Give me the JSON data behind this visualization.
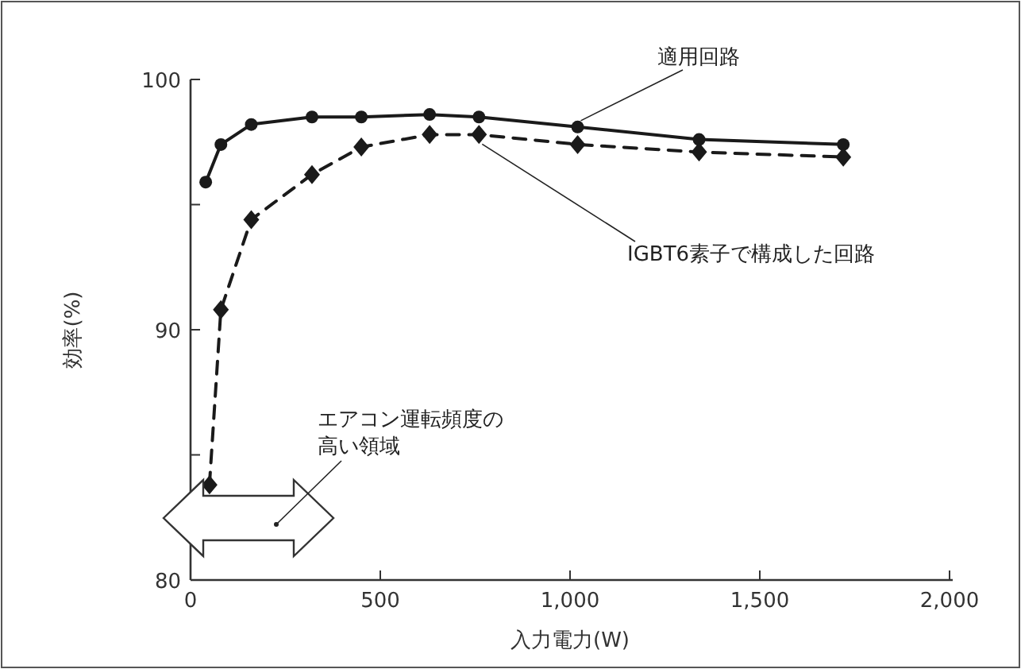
{
  "chart_data": {
    "type": "line",
    "xlabel": "入力電力(W)",
    "ylabel": "効率(%)",
    "xlim": [
      0,
      2000
    ],
    "ylim": [
      80,
      100
    ],
    "xticks": [
      0,
      500,
      {
        "value": 1000,
        "label": "1,000"
      },
      {
        "value": 1500,
        "label": "1,500"
      },
      {
        "value": 2000,
        "label": "2,000"
      }
    ],
    "yticks": [
      80,
      {
        "value": 85,
        "label": null
      },
      90,
      {
        "value": 95,
        "label": null
      },
      100
    ],
    "grid": false,
    "series": [
      {
        "name": "適用回路",
        "color": "#1a1a1a",
        "marker": "circle",
        "line_style": "solid",
        "x": [
          40,
          80,
          160,
          320,
          450,
          630,
          760,
          1020,
          1340,
          1720
        ],
        "values": [
          95.9,
          97.4,
          98.2,
          98.5,
          98.5,
          98.6,
          98.5,
          98.1,
          97.6,
          97.4
        ]
      },
      {
        "name": "IGBT6素子で構成した回路",
        "color": "#1a1a1a",
        "marker": "diamond",
        "line_style": "dashed",
        "x": [
          50,
          80,
          160,
          320,
          450,
          630,
          760,
          1020,
          1340,
          1720
        ],
        "values": [
          83.8,
          90.8,
          94.4,
          96.2,
          97.3,
          97.8,
          97.8,
          97.4,
          97.1,
          96.9
        ]
      }
    ],
    "annotations": [
      "エアコン運転頻度の高い領域"
    ]
  }
}
